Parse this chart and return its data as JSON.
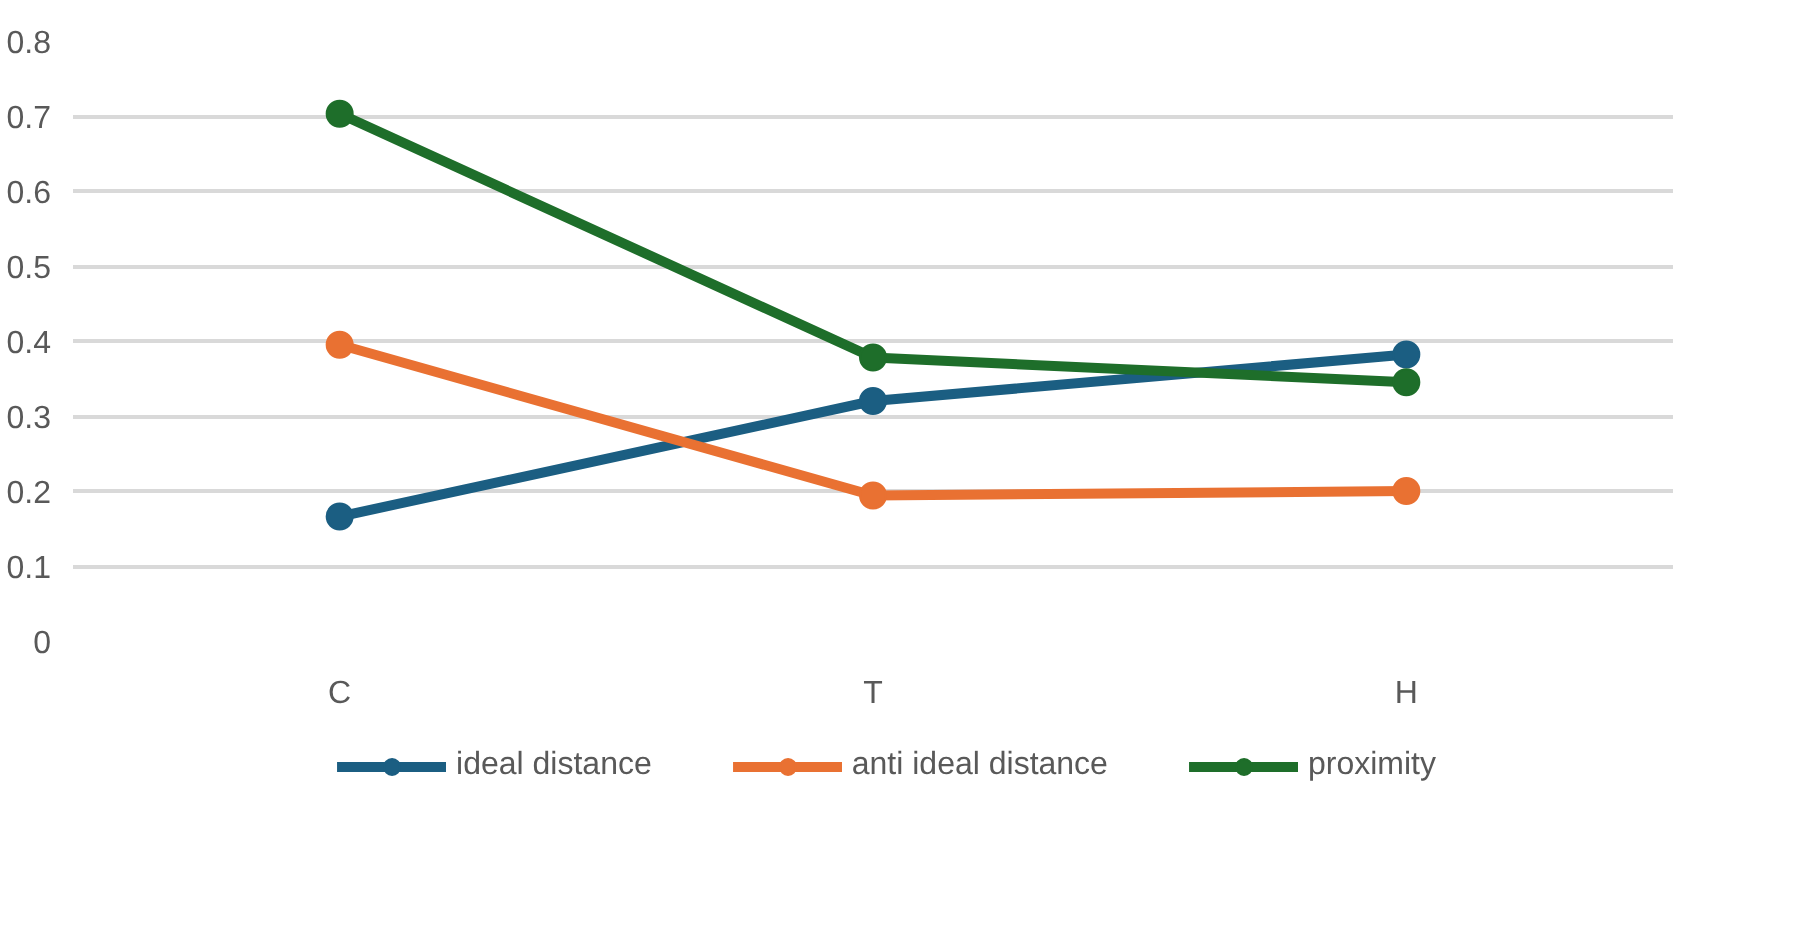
{
  "chart_data": {
    "type": "line",
    "categories": [
      "C",
      "T",
      "H"
    ],
    "series": [
      {
        "name": "ideal distance",
        "color": "#1b5e82",
        "values": [
          0.166,
          0.32,
          0.382
        ]
      },
      {
        "name": "anti ideal distance",
        "color": "#e97132",
        "values": [
          0.395,
          0.194,
          0.2
        ]
      },
      {
        "name": "proximity",
        "color": "#1e6e2a",
        "values": [
          0.703,
          0.378,
          0.345
        ]
      }
    ],
    "ylim": [
      0,
      0.8
    ],
    "yticks": [
      {
        "value": 0,
        "label": "0"
      },
      0.1,
      0.2,
      0.3,
      0.4,
      0.5,
      0.6,
      0.7,
      0.8
    ],
    "grid": "y",
    "legend": "bottom",
    "marker": "circle",
    "line_style": "solid"
  }
}
